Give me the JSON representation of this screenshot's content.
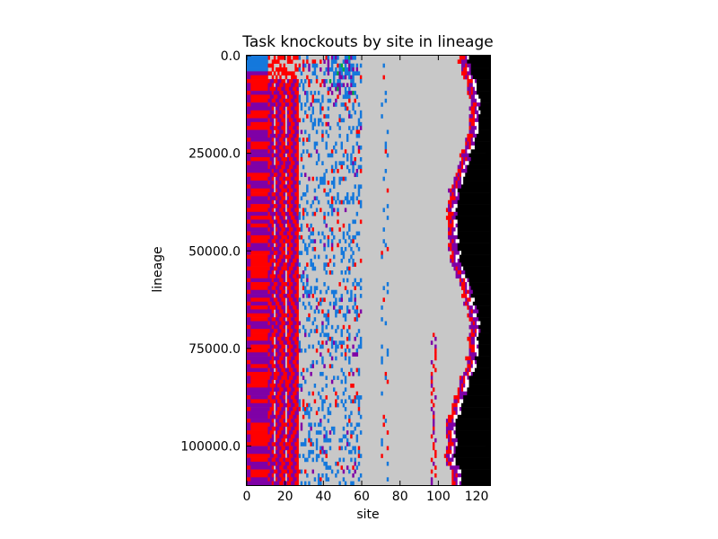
{
  "chart_data": {
    "type": "heatmap",
    "title": "Task knockouts by site in lineage",
    "xlabel": "site",
    "ylabel": "lineage",
    "xlim": [
      0,
      127
    ],
    "ylim": [
      0,
      110000
    ],
    "y_inverted": true,
    "x_ticks": [
      0,
      20,
      40,
      60,
      80,
      100,
      120
    ],
    "x_tick_labels": [
      "0",
      "20",
      "40",
      "60",
      "80",
      "100",
      "120"
    ],
    "y_ticks": [
      0,
      25000,
      50000,
      75000,
      100000
    ],
    "y_tick_labels": [
      "0.0",
      "25000.0",
      "50000.0",
      "75000.0",
      "100000.0"
    ],
    "grid": false,
    "legend": "none",
    "colors": {
      "background": "#c8c8c8",
      "purple": "#7f00a6",
      "red": "#ff0000",
      "blue": "#1478dc",
      "green": "#00aa3c",
      "black": "#000000",
      "white": "#ffffff"
    },
    "rows": 110,
    "cols": 127,
    "cell_value_legend": "0=background,1=purple,2=red,3=blue,4=green,5=black,6=white"
  }
}
